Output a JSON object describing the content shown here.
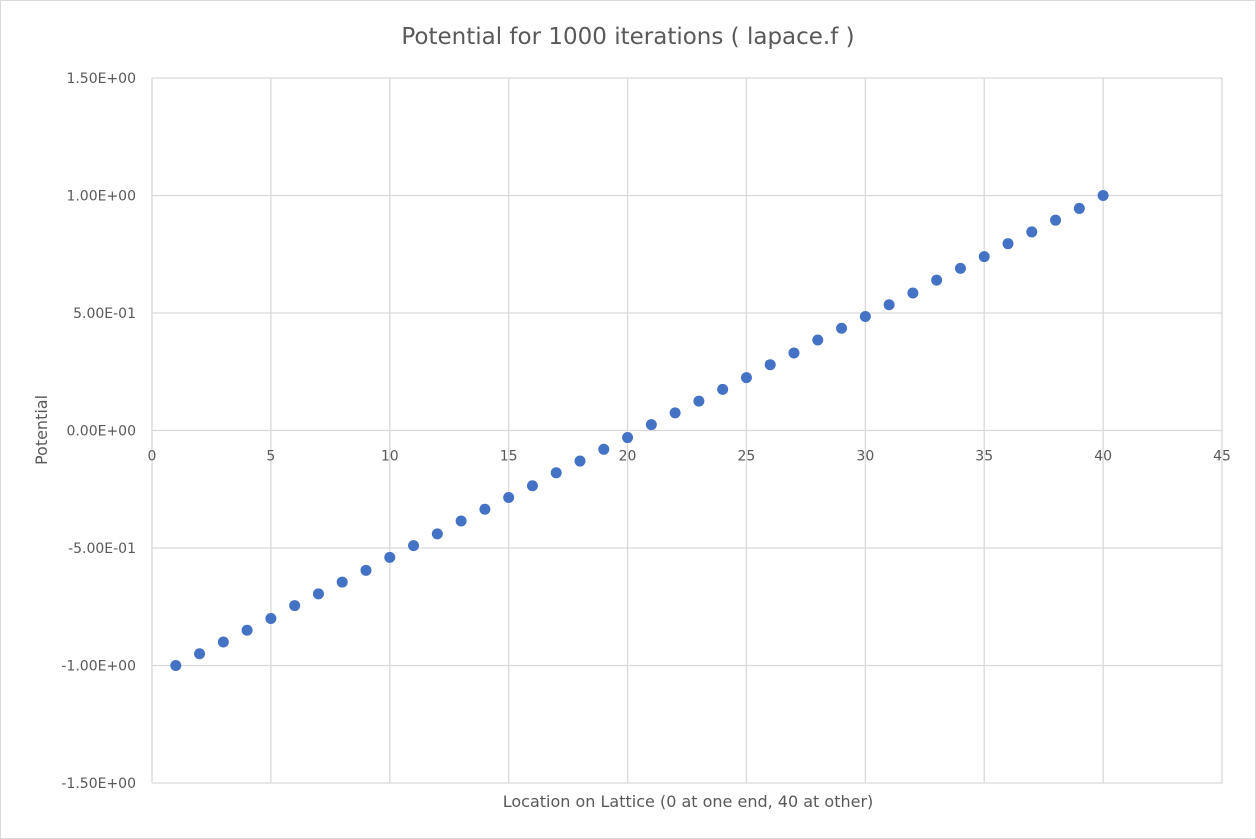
{
  "chart_data": {
    "type": "scatter",
    "title": "Potential for 1000 iterations ( lapace.f )",
    "xlabel": "Location on Lattice (0 at one end, 40 at other)",
    "ylabel": "Potential",
    "xlim": [
      0,
      45
    ],
    "ylim": [
      -1.5,
      1.5
    ],
    "x_ticks": [
      0,
      5,
      10,
      15,
      20,
      25,
      30,
      35,
      40,
      45
    ],
    "x_tick_labels": [
      "0",
      "5",
      "10",
      "15",
      "20",
      "25",
      "30",
      "35",
      "40",
      "45"
    ],
    "y_ticks": [
      1.5,
      1.0,
      0.5,
      0.0,
      -0.5,
      -1.0,
      -1.5
    ],
    "y_tick_labels": [
      "1.50E+00",
      "1.00E+00",
      "5.00E-01",
      "0.00E+00",
      "-5.00E-01",
      "-1.00E+00",
      "-1.50E+00"
    ],
    "grid": true,
    "legend": "none",
    "series": [
      {
        "color": "#4472c4",
        "x": [
          1,
          2,
          3,
          4,
          5,
          6,
          7,
          8,
          9,
          10,
          11,
          12,
          13,
          14,
          15,
          16,
          17,
          18,
          19,
          20,
          21,
          22,
          23,
          24,
          25,
          26,
          27,
          28,
          29,
          30,
          31,
          32,
          33,
          34,
          35,
          36,
          37,
          38,
          39,
          40
        ],
        "y": [
          -1.0,
          -0.95,
          -0.9,
          -0.85,
          -0.8,
          -0.745,
          -0.695,
          -0.645,
          -0.595,
          -0.54,
          -0.49,
          -0.44,
          -0.385,
          -0.335,
          -0.285,
          -0.235,
          -0.18,
          -0.13,
          -0.08,
          -0.03,
          0.025,
          0.075,
          0.125,
          0.175,
          0.225,
          0.28,
          0.33,
          0.385,
          0.435,
          0.485,
          0.535,
          0.585,
          0.64,
          0.69,
          0.74,
          0.795,
          0.845,
          0.895,
          0.945,
          1.0
        ]
      }
    ]
  }
}
